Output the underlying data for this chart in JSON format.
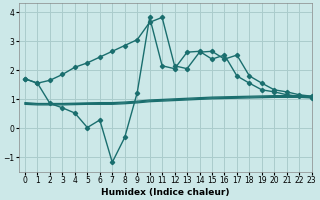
{
  "xlabel": "Humidex (Indice chaleur)",
  "bg_color": "#cce8e8",
  "grid_color": "#aacccc",
  "line_color": "#1a6e6e",
  "xlim": [
    -0.5,
    23
  ],
  "ylim": [
    -1.5,
    4.3
  ],
  "x": [
    0,
    1,
    2,
    3,
    4,
    5,
    6,
    7,
    8,
    9,
    10,
    11,
    12,
    13,
    14,
    15,
    16,
    17,
    18,
    19,
    20,
    21,
    22,
    23
  ],
  "line_main": [
    1.7,
    1.55,
    1.65,
    1.85,
    2.1,
    2.25,
    2.45,
    2.65,
    2.85,
    3.05,
    3.65,
    3.82,
    2.15,
    2.05,
    2.62,
    2.65,
    2.38,
    2.52,
    1.8,
    1.55,
    1.32,
    1.25,
    1.15,
    1.1
  ],
  "line_volatile": [
    1.7,
    1.55,
    0.85,
    0.7,
    0.52,
    0.02,
    0.28,
    -1.18,
    -0.32,
    1.22,
    3.82,
    2.15,
    2.05,
    2.62,
    2.65,
    2.38,
    2.52,
    1.8,
    1.55,
    1.32,
    1.25,
    1.15,
    1.1,
    1.05
  ],
  "line_flat1": [
    0.88,
    0.85,
    0.85,
    0.85,
    0.86,
    0.87,
    0.88,
    0.88,
    0.9,
    0.93,
    0.97,
    0.99,
    1.01,
    1.03,
    1.05,
    1.07,
    1.08,
    1.09,
    1.1,
    1.11,
    1.12,
    1.12,
    1.12,
    1.1
  ],
  "line_flat2": [
    0.85,
    0.83,
    0.83,
    0.83,
    0.84,
    0.85,
    0.85,
    0.85,
    0.87,
    0.9,
    0.94,
    0.96,
    0.98,
    1.0,
    1.02,
    1.04,
    1.05,
    1.06,
    1.07,
    1.08,
    1.09,
    1.09,
    1.09,
    1.07
  ],
  "line_flat3": [
    0.82,
    0.8,
    0.8,
    0.8,
    0.81,
    0.82,
    0.82,
    0.82,
    0.84,
    0.87,
    0.91,
    0.93,
    0.95,
    0.97,
    0.99,
    1.01,
    1.02,
    1.03,
    1.04,
    1.05,
    1.06,
    1.06,
    1.06,
    1.04
  ],
  "yticks": [
    -1,
    0,
    1,
    2,
    3,
    4
  ],
  "xticks": [
    0,
    1,
    2,
    3,
    4,
    5,
    6,
    7,
    8,
    9,
    10,
    11,
    12,
    13,
    14,
    15,
    16,
    17,
    18,
    19,
    20,
    21,
    22,
    23
  ],
  "tick_fontsize": 5.5,
  "xlabel_fontsize": 6.5
}
